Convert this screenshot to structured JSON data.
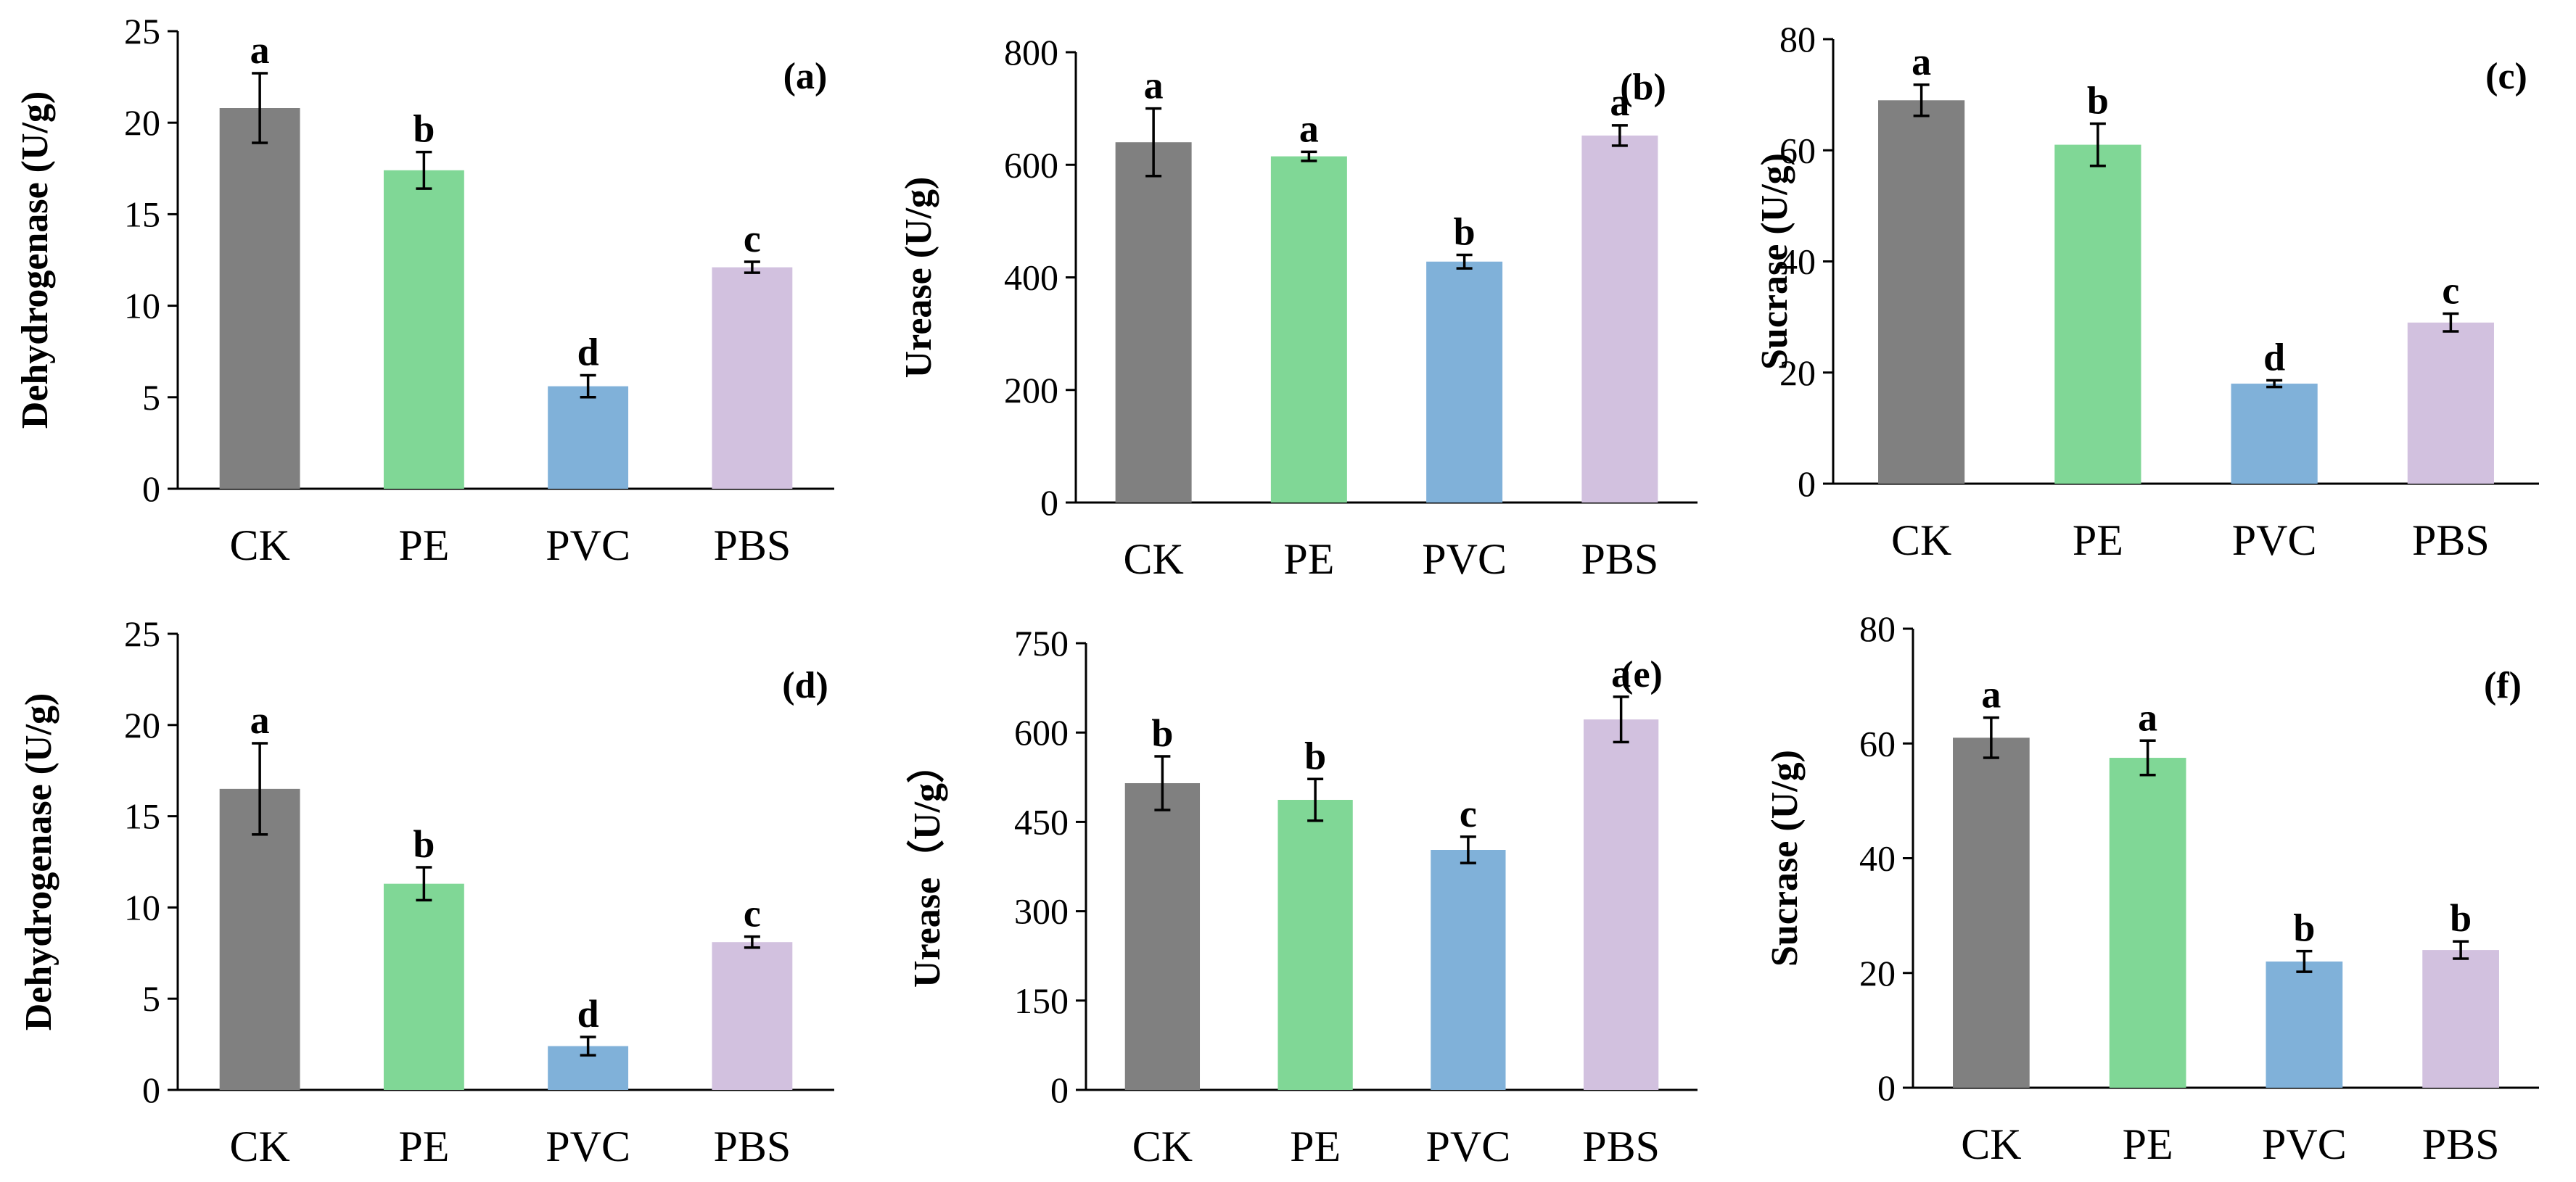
{
  "chart_data": [
    {
      "panel_label": "(a)",
      "type": "bar",
      "categories": [
        "CK",
        "PE",
        "PVC",
        "PBS"
      ],
      "values": [
        20.8,
        17.4,
        5.6,
        12.1
      ],
      "errors": [
        1.9,
        1.0,
        0.6,
        0.3
      ],
      "letters": [
        "a",
        "b",
        "d",
        "c"
      ],
      "colors": [
        "#808080",
        "#80d796",
        "#80b1d9",
        "#d2c1df"
      ],
      "ylabel": "Dehydrogenase (U/g)",
      "yticks": [
        "0",
        "5",
        "10",
        "15",
        "20",
        "25"
      ],
      "ylim": [
        0,
        25
      ]
    },
    {
      "panel_label": "(b)",
      "type": "bar",
      "categories": [
        "CK",
        "PE",
        "PVC",
        "PBS"
      ],
      "values": [
        640,
        615,
        428,
        652
      ],
      "errors": [
        60,
        8,
        12,
        18
      ],
      "letters": [
        "a",
        "a",
        "b",
        "a"
      ],
      "colors": [
        "#808080",
        "#80d796",
        "#80b1d9",
        "#d2c1df"
      ],
      "ylabel": "Urease (U/g)",
      "yticks": [
        "0",
        "200",
        "400",
        "600",
        "800"
      ],
      "ylim": [
        0,
        800
      ]
    },
    {
      "panel_label": "(c)",
      "type": "bar",
      "categories": [
        "CK",
        "PE",
        "PVC",
        "PBS"
      ],
      "values": [
        69,
        61,
        18,
        29
      ],
      "errors": [
        2.8,
        3.8,
        0.6,
        1.6
      ],
      "letters": [
        "a",
        "b",
        "d",
        "c"
      ],
      "colors": [
        "#808080",
        "#80d796",
        "#80b1d9",
        "#d2c1df"
      ],
      "ylabel": "Sucrase (U/g)",
      "yticks": [
        "0",
        "20",
        "40",
        "60",
        "80"
      ],
      "ylim": [
        0,
        80
      ]
    },
    {
      "panel_label": "(d)",
      "type": "bar",
      "categories": [
        "CK",
        "PE",
        "PVC",
        "PBS"
      ],
      "values": [
        16.5,
        11.3,
        2.4,
        8.1
      ],
      "errors": [
        2.5,
        0.9,
        0.5,
        0.3
      ],
      "letters": [
        "a",
        "b",
        "d",
        "c"
      ],
      "colors": [
        "#808080",
        "#80d796",
        "#80b1d9",
        "#d2c1df"
      ],
      "ylabel": "Dehydrogenase (U/g)",
      "yticks": [
        "0",
        "5",
        "10",
        "15",
        "20",
        "25"
      ],
      "ylim": [
        0,
        25
      ]
    },
    {
      "panel_label": "(e)",
      "type": "bar",
      "categories": [
        "CK",
        "PE",
        "PVC",
        "PBS"
      ],
      "values": [
        515,
        487,
        403,
        622
      ],
      "errors": [
        45,
        35,
        22,
        38
      ],
      "letters": [
        "b",
        "b",
        "c",
        "a"
      ],
      "colors": [
        "#808080",
        "#80d796",
        "#80b1d9",
        "#d2c1df"
      ],
      "ylabel": "Urease（U/g）",
      "yticks": [
        "0",
        "150",
        "300",
        "450",
        "600",
        "750"
      ],
      "ylim": [
        0,
        750
      ]
    },
    {
      "panel_label": "(f)",
      "type": "bar",
      "categories": [
        "CK",
        "PE",
        "PVC",
        "PBS"
      ],
      "values": [
        61,
        57.5,
        22,
        24
      ],
      "errors": [
        3.5,
        3.0,
        1.8,
        1.5
      ],
      "letters": [
        "a",
        "a",
        "b",
        "b"
      ],
      "colors": [
        "#808080",
        "#80d796",
        "#80b1d9",
        "#d2c1df"
      ],
      "ylabel": "Sucrase (U/g)",
      "yticks": [
        "0",
        "20",
        "40",
        "60",
        "80"
      ],
      "ylim": [
        0,
        80
      ]
    }
  ]
}
